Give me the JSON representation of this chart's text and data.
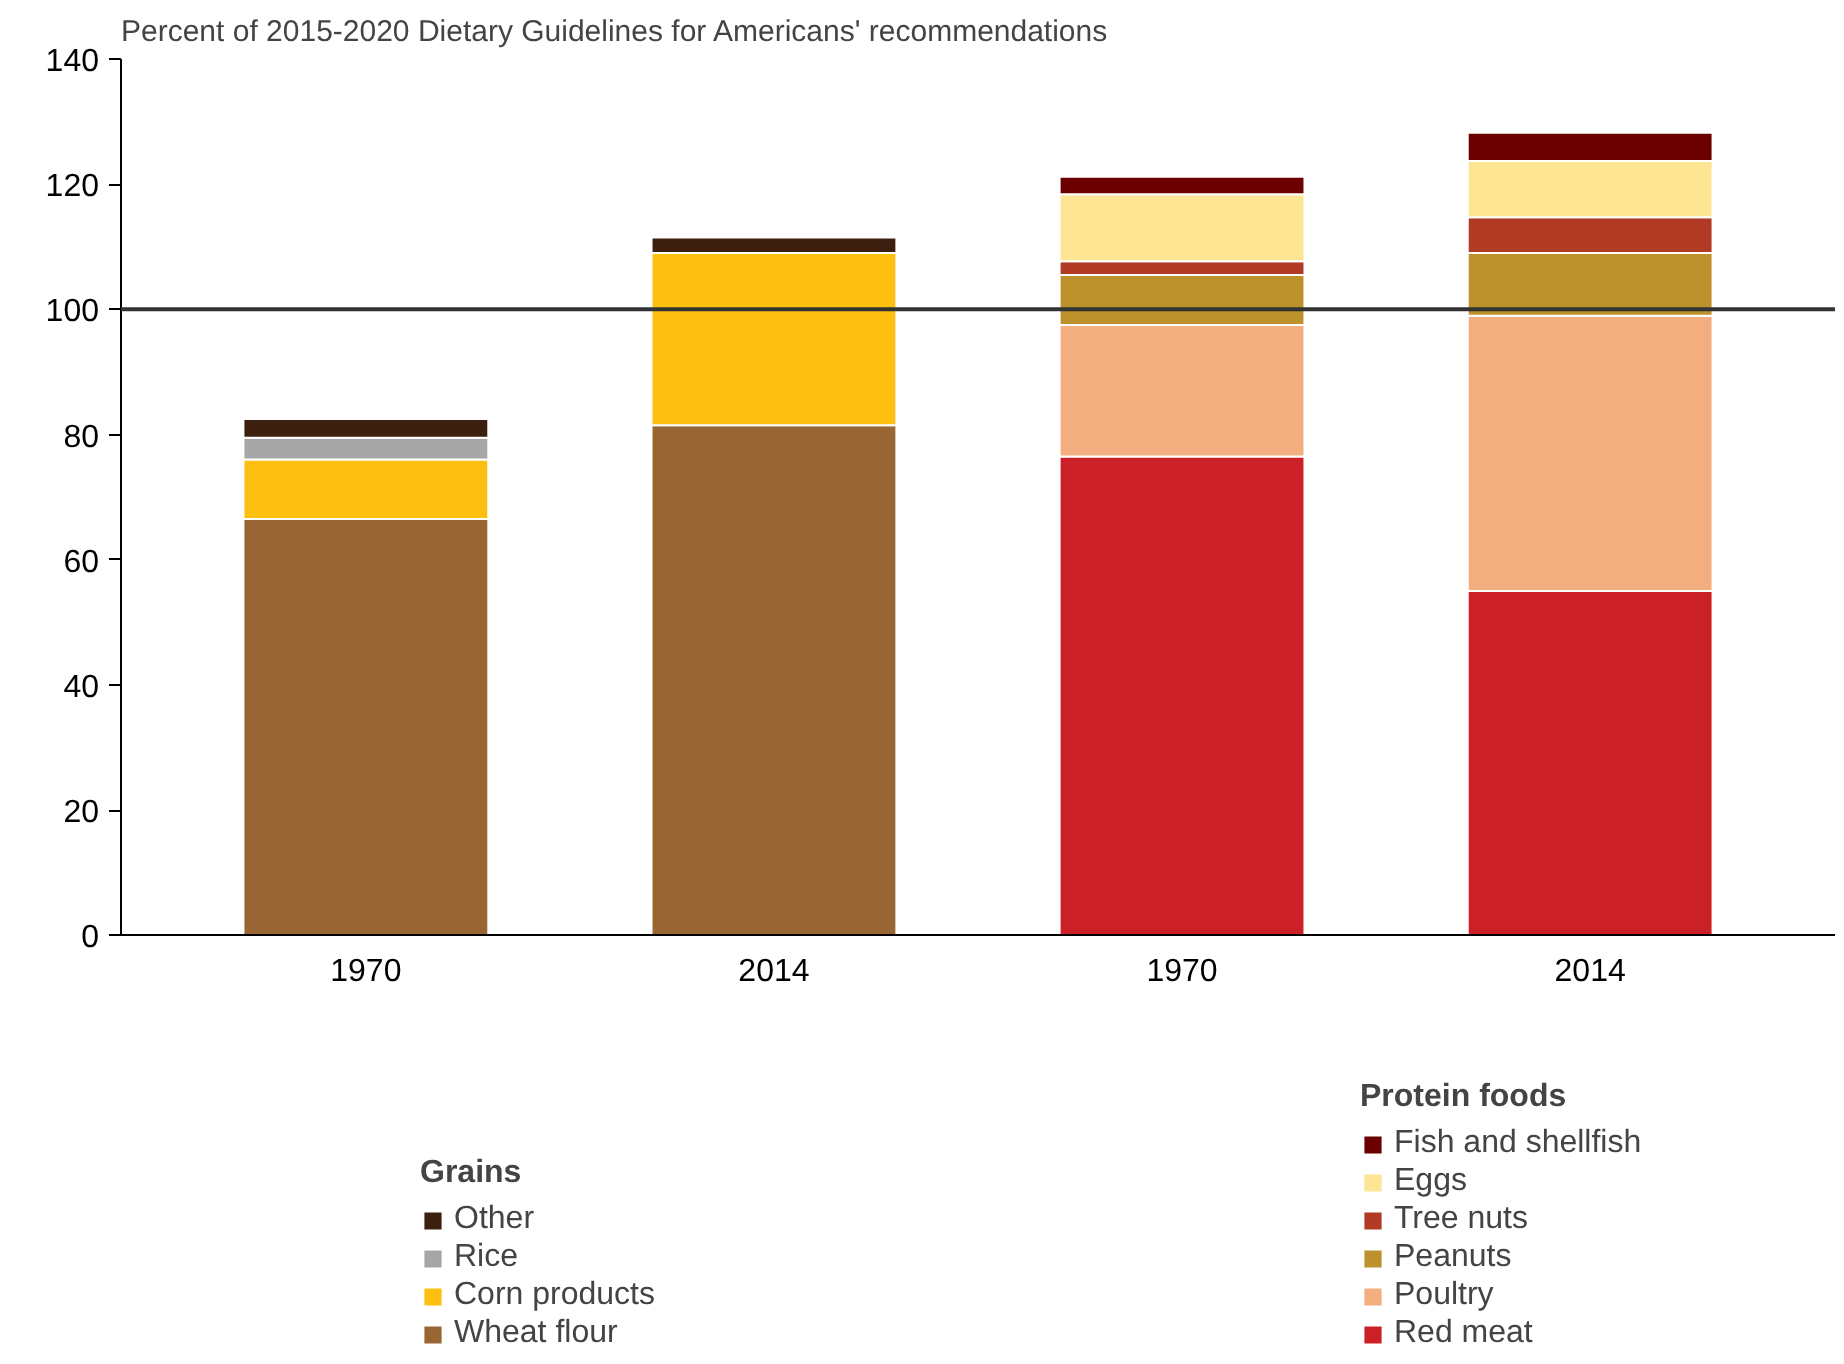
{
  "chart_data": {
    "type": "bar",
    "stacked": true,
    "title": "Percent of 2015-2020 Dietary Guidelines for Americans' recommendations",
    "categories": [
      "1970",
      "2014",
      "1970",
      "2014"
    ],
    "series": [
      {
        "name": "Wheat flour",
        "color": "#996633",
        "values": [
          66.5,
          81.5,
          null,
          null
        ]
      },
      {
        "name": "Corn products",
        "color": "#fdc010",
        "values": [
          9.5,
          27.5,
          null,
          null
        ]
      },
      {
        "name": "Rice",
        "color": "#a6a6a6",
        "values": [
          3.5,
          null,
          null,
          null
        ]
      },
      {
        "name": "Other",
        "color": "#3d1f0f",
        "values": [
          3,
          2.5,
          null,
          null
        ]
      },
      {
        "name": "Red meat",
        "color": "#cc2027",
        "values": [
          null,
          null,
          76.5,
          55
        ]
      },
      {
        "name": "Poultry",
        "color": "#f3ae80",
        "values": [
          null,
          null,
          21,
          44
        ]
      },
      {
        "name": "Peanuts",
        "color": "#bd922d",
        "values": [
          null,
          null,
          8,
          10
        ]
      },
      {
        "name": "Tree nuts",
        "color": "#b03a24",
        "values": [
          null,
          null,
          2.2,
          5.7
        ]
      },
      {
        "name": "Eggs",
        "color": "#fde593",
        "values": [
          null,
          null,
          10.7,
          9
        ]
      },
      {
        "name": "Fish and shellfish",
        "color": "#6b0000",
        "values": [
          null,
          null,
          2.8,
          4.5
        ]
      }
    ],
    "legend_title": [
      "Grains",
      "Protein foods"
    ],
    "legend": "bottom",
    "ylim": [
      0,
      140
    ],
    "yticks": [
      0,
      20,
      40,
      60,
      80,
      100,
      120,
      140
    ],
    "ref_lines": [
      {
        "axis": "y",
        "value": 100,
        "color": "#333333"
      }
    ],
    "grid": false
  }
}
